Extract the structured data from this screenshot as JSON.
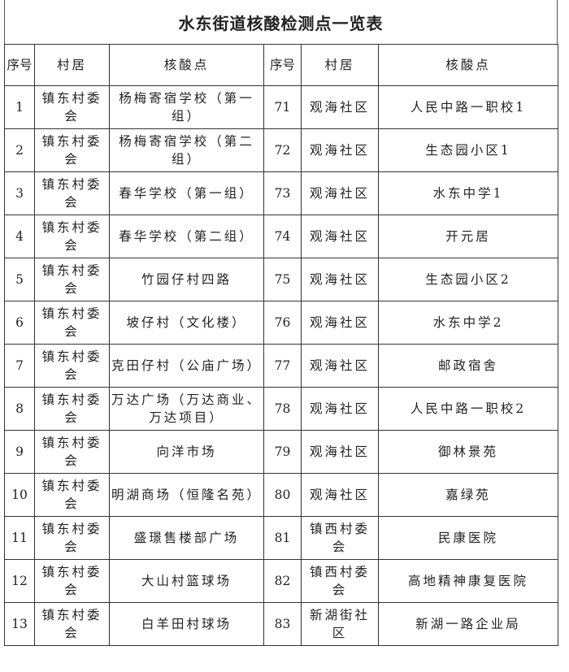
{
  "title": "水东街道核酸检测点一览表",
  "headers": [
    "序号",
    "村居",
    "核酸点",
    "序号",
    "村居",
    "核酸点"
  ],
  "rows": [
    [
      "1",
      "镇东村委会",
      "杨梅寄宿学校（第一组）",
      "71",
      "观海社区",
      "人民中路一职校1"
    ],
    [
      "2",
      "镇东村委会",
      "杨梅寄宿学校（第二组）",
      "72",
      "观海社区",
      "生态园小区1"
    ],
    [
      "3",
      "镇东村委会",
      "春华学校（第一组）",
      "73",
      "观海社区",
      "水东中学1"
    ],
    [
      "4",
      "镇东村委会",
      "春华学校（第二组）",
      "74",
      "观海社区",
      "开元居"
    ],
    [
      "5",
      "镇东村委会",
      "竹园仔村四路",
      "75",
      "观海社区",
      "生态园小区2"
    ],
    [
      "6",
      "镇东村委会",
      "坡仔村（文化楼）",
      "76",
      "观海社区",
      "水东中学2"
    ],
    [
      "7",
      "镇东村委会",
      "克田仔村（公庙广场）",
      "77",
      "观海社区",
      "邮政宿舍"
    ],
    [
      "8",
      "镇东村委会",
      "万达广场（万达商业、万达项目）",
      "78",
      "观海社区",
      "人民中路一职校2"
    ],
    [
      "9",
      "镇东村委会",
      "向洋市场",
      "79",
      "观海社区",
      "御林景苑"
    ],
    [
      "10",
      "镇东村委会",
      "明湖商场（恒隆名苑）",
      "80",
      "观海社区",
      "嘉绿苑"
    ],
    [
      "11",
      "镇东村委会",
      "盛璟售楼部广场",
      "81",
      "镇西村委会",
      "民康医院"
    ],
    [
      "12",
      "镇东村委会",
      "大山村篮球场",
      "82",
      "镇西村委会",
      "高地精神康复医院"
    ],
    [
      "13",
      "镇东村委会",
      "白羊田村球场",
      "83",
      "新湖街社区",
      "新湖一路企业局"
    ]
  ]
}
